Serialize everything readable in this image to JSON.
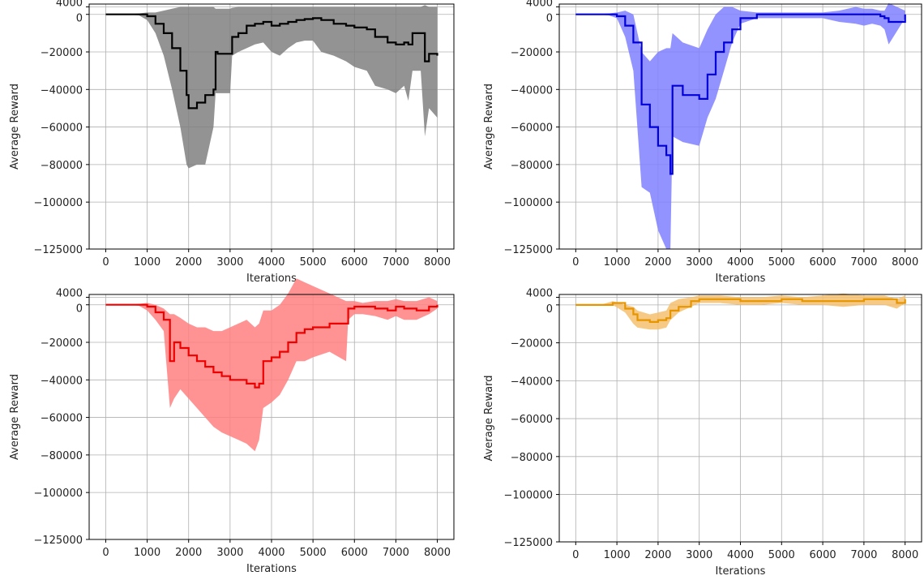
{
  "chart_data": [
    {
      "type": "line",
      "panel": "top-left",
      "xlabel": "Iterations",
      "ylabel": "Average Reward",
      "xlim": [
        -400,
        8400
      ],
      "ylim": [
        -125000,
        5500
      ],
      "xticks": [
        0,
        1000,
        2000,
        3000,
        4000,
        5000,
        6000,
        7000,
        8000
      ],
      "yticks": [
        4000,
        0,
        -20000,
        -40000,
        -60000,
        -80000,
        -100000,
        -125000
      ],
      "grid": true,
      "colors": {
        "line": "#000000",
        "band": "#808080"
      },
      "series": [
        {
          "x": [
            0,
            500,
            800,
            1000,
            1200,
            1400,
            1600,
            1800,
            1950,
            2000,
            2200,
            2400,
            2600,
            2650,
            2700,
            3000,
            3050,
            3200,
            3400,
            3600,
            3800,
            4000,
            4200,
            4400,
            4600,
            4800,
            5000,
            5200,
            5500,
            5800,
            6000,
            6300,
            6500,
            6800,
            7000,
            7200,
            7300,
            7400,
            7600,
            7700,
            7800,
            8000
          ],
          "y": [
            0,
            0,
            0,
            -1000,
            -5000,
            -10000,
            -18000,
            -30000,
            -43000,
            -50000,
            -47000,
            -43000,
            -40000,
            -20000,
            -21000,
            -21000,
            -12000,
            -10000,
            -6000,
            -5000,
            -4000,
            -6000,
            -5000,
            -4000,
            -3000,
            -2500,
            -2000,
            -3000,
            -5000,
            -6000,
            -7000,
            -8000,
            -12000,
            -15000,
            -16000,
            -15000,
            -16000,
            -10000,
            -10000,
            -25000,
            -21000,
            -22000
          ],
          "lower": [
            0,
            0,
            -500,
            -3000,
            -10000,
            -22000,
            -40000,
            -60000,
            -80000,
            -82000,
            -80000,
            -80000,
            -60000,
            -42000,
            -42000,
            -42000,
            -22000,
            -20000,
            -18000,
            -16000,
            -15000,
            -20000,
            -22000,
            -18000,
            -15000,
            -14000,
            -14000,
            -20000,
            -22000,
            -25000,
            -28000,
            -30000,
            -38000,
            -40000,
            -42000,
            -38000,
            -46000,
            -30000,
            -30000,
            -65000,
            -50000,
            -55000
          ],
          "upper": [
            0,
            0,
            500,
            1000,
            1000,
            2000,
            3000,
            4000,
            4000,
            4000,
            4000,
            4000,
            4000,
            3000,
            3000,
            3000,
            3500,
            4000,
            4000,
            4000,
            4000,
            4000,
            4000,
            4000,
            4000,
            4000,
            4000,
            4000,
            4000,
            4000,
            4000,
            4000,
            4000,
            4000,
            4000,
            4000,
            4000,
            4000,
            4000,
            5000,
            4000,
            4000
          ]
        }
      ]
    },
    {
      "type": "line",
      "panel": "top-right",
      "xlabel": "Iterations",
      "ylabel": "Average Reward",
      "xlim": [
        -400,
        8400
      ],
      "ylim": [
        -125000,
        5500
      ],
      "xticks": [
        0,
        1000,
        2000,
        3000,
        4000,
        5000,
        6000,
        7000,
        8000
      ],
      "yticks": [
        4000,
        0,
        -20000,
        -40000,
        -60000,
        -80000,
        -100000,
        -125000
      ],
      "grid": true,
      "colors": {
        "line": "#0000dd",
        "band": "#8080ff"
      },
      "series": [
        {
          "x": [
            0,
            500,
            800,
            1000,
            1200,
            1400,
            1600,
            1800,
            2000,
            2200,
            2300,
            2350,
            2600,
            3000,
            3200,
            3400,
            3600,
            3800,
            4000,
            4400,
            4800,
            5200,
            5600,
            6000,
            6400,
            6800,
            7000,
            7200,
            7400,
            7500,
            7600,
            8000
          ],
          "y": [
            0,
            0,
            0,
            -1000,
            -6000,
            -15000,
            -48000,
            -60000,
            -70000,
            -75000,
            -85000,
            -38000,
            -43000,
            -45000,
            -32000,
            -20000,
            -15000,
            -8000,
            -2000,
            0,
            0,
            0,
            0,
            0,
            0,
            0,
            0,
            0,
            -1000,
            -2000,
            -4000,
            0
          ],
          "lower": [
            0,
            0,
            -500,
            -2000,
            -12000,
            -30000,
            -92000,
            -95000,
            -115000,
            -125000,
            -125000,
            -65000,
            -68000,
            -70000,
            -55000,
            -45000,
            -30000,
            -15000,
            -5000,
            -2000,
            -2000,
            -2000,
            -2000,
            -2000,
            -4000,
            -5000,
            -6000,
            -5000,
            -6000,
            -8000,
            -16000,
            -2000
          ],
          "upper": [
            0,
            0,
            500,
            1000,
            2000,
            0,
            -20000,
            -25000,
            -20000,
            -18000,
            -18000,
            -10000,
            -15000,
            -18000,
            -8000,
            0,
            4000,
            4000,
            2000,
            1000,
            1000,
            1000,
            1000,
            1000,
            2000,
            4000,
            3000,
            3000,
            2000,
            2000,
            6000,
            2000
          ]
        }
      ]
    },
    {
      "type": "line",
      "panel": "bottom-left",
      "xlabel": "Iterations",
      "ylabel": "Average Reward",
      "xlim": [
        -400,
        8400
      ],
      "ylim": [
        -125000,
        5500
      ],
      "xticks": [
        0,
        1000,
        2000,
        3000,
        4000,
        5000,
        6000,
        7000,
        8000
      ],
      "yticks": [
        4000,
        0,
        -20000,
        -40000,
        -60000,
        -80000,
        -100000,
        -125000
      ],
      "grid": true,
      "colors": {
        "line": "#ee0000",
        "band": "#ff8080"
      },
      "series": [
        {
          "x": [
            0,
            500,
            800,
            1000,
            1200,
            1400,
            1550,
            1650,
            1800,
            2000,
            2200,
            2400,
            2600,
            2800,
            3000,
            3200,
            3400,
            3600,
            3700,
            3800,
            4000,
            4200,
            4400,
            4600,
            4800,
            5000,
            5400,
            5800,
            5850,
            6000,
            6200,
            6500,
            6800,
            7000,
            7200,
            7500,
            7800,
            8000
          ],
          "y": [
            0,
            0,
            0,
            -1000,
            -4000,
            -8000,
            -30000,
            -20000,
            -23000,
            -27000,
            -30000,
            -33000,
            -36000,
            -38000,
            -40000,
            -40000,
            -42000,
            -44000,
            -42000,
            -30000,
            -28000,
            -25000,
            -20000,
            -15000,
            -13000,
            -12000,
            -10000,
            -10000,
            -2000,
            -1000,
            -1000,
            -2000,
            -3000,
            -1000,
            -2000,
            -3000,
            -1000,
            0
          ],
          "lower": [
            0,
            0,
            -500,
            -3000,
            -8000,
            -14000,
            -55000,
            -50000,
            -45000,
            -50000,
            -55000,
            -60000,
            -65000,
            -68000,
            -70000,
            -72000,
            -74000,
            -78000,
            -72000,
            -55000,
            -52000,
            -48000,
            -40000,
            -30000,
            -30000,
            -28000,
            -25000,
            -30000,
            -8000,
            -5000,
            -5000,
            -6000,
            -8000,
            -6000,
            -8000,
            -8000,
            -5000,
            -2000
          ],
          "upper": [
            0,
            0,
            500,
            1000,
            0,
            -2000,
            -5000,
            -5000,
            -7000,
            -10000,
            -12000,
            -12000,
            -14000,
            -14000,
            -12000,
            -10000,
            -8000,
            -12000,
            -10000,
            -3000,
            -3000,
            0,
            6000,
            14000,
            12000,
            10000,
            6000,
            2000,
            2000,
            2000,
            1000,
            2000,
            2000,
            3000,
            2000,
            2000,
            4000,
            2000
          ]
        }
      ]
    },
    {
      "type": "line",
      "panel": "bottom-right",
      "xlabel": "Iterations",
      "ylabel": "Average Reward",
      "xlim": [
        -400,
        8400
      ],
      "ylim": [
        -125000,
        5500
      ],
      "xticks": [
        0,
        1000,
        2000,
        3000,
        4000,
        5000,
        6000,
        7000,
        8000
      ],
      "yticks": [
        4000,
        0,
        -20000,
        -40000,
        -60000,
        -80000,
        -100000,
        -125000
      ],
      "grid": true,
      "colors": {
        "line": "#e69500",
        "band": "#f5c070"
      },
      "series": [
        {
          "x": [
            0,
            600,
            900,
            1200,
            1400,
            1500,
            1800,
            2000,
            2200,
            2300,
            2500,
            2800,
            3000,
            3500,
            4000,
            4500,
            5000,
            5500,
            6000,
            6500,
            7000,
            7500,
            7800,
            8000
          ],
          "y": [
            0,
            0,
            1000,
            -2000,
            -5000,
            -8000,
            -9000,
            -8000,
            -7000,
            -3000,
            -1000,
            2000,
            3000,
            3000,
            2000,
            2000,
            3000,
            2000,
            2000,
            2000,
            3000,
            3000,
            1000,
            3000
          ],
          "lower": [
            0,
            0,
            0,
            -4000,
            -10000,
            -12000,
            -13000,
            -13000,
            -12000,
            -8000,
            -4000,
            -1000,
            1000,
            1000,
            0,
            0,
            1000,
            0,
            0,
            -1000,
            0,
            0,
            -2000,
            1000
          ],
          "upper": [
            0,
            0,
            2000,
            0,
            -1000,
            -3000,
            -5000,
            -4000,
            -3000,
            1000,
            3000,
            4000,
            5000,
            5000,
            4000,
            4000,
            5000,
            4000,
            5000,
            6000,
            5000,
            5000,
            3000,
            5000
          ]
        }
      ]
    }
  ]
}
